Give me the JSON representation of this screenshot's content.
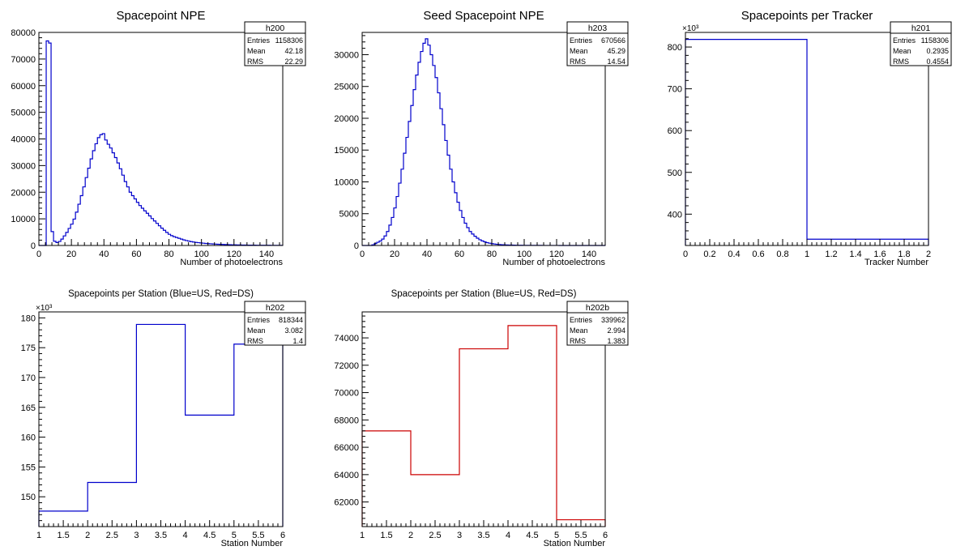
{
  "chart_data": [
    {
      "id": "h200",
      "type": "histogram",
      "title": "Spacepoint NPE",
      "xlabel": "Number of photoelectrons",
      "ylabel": "",
      "xlim": [
        0,
        150
      ],
      "ylim": [
        0,
        80000
      ],
      "xticks": [
        0,
        20,
        40,
        60,
        80,
        100,
        120,
        140
      ],
      "xtick_labels": [
        "0",
        "20",
        "40",
        "60",
        "80",
        "100",
        "120",
        "140"
      ],
      "yticks": [
        0,
        10000,
        20000,
        30000,
        40000,
        50000,
        60000,
        70000,
        80000
      ],
      "ytick_labels": [
        "0",
        "10000",
        "20000",
        "30000",
        "40000",
        "50000",
        "60000",
        "70000",
        "80000"
      ],
      "y_exponent": "",
      "color": "#0000cc",
      "bin_edges_start": 0,
      "bin_width": 1.5,
      "values": [
        0,
        0,
        0,
        76800,
        76000,
        5200,
        1600,
        1100,
        1500,
        2400,
        3600,
        4900,
        6400,
        8000,
        9900,
        12500,
        15500,
        18700,
        22000,
        25500,
        29000,
        32500,
        35600,
        38200,
        40500,
        41600,
        42000,
        39600,
        38000,
        36600,
        34800,
        33000,
        31000,
        28800,
        26400,
        24000,
        22000,
        20000,
        18700,
        17500,
        16200,
        15000,
        14000,
        13000,
        12100,
        11100,
        10100,
        9200,
        8300,
        7400,
        6500,
        5700,
        4900,
        4200,
        3700,
        3300,
        3000,
        2700,
        2400,
        2100,
        1850,
        1650,
        1450,
        1300,
        1150,
        1050,
        950,
        850,
        750,
        680,
        620,
        560,
        510,
        460,
        420,
        380,
        340,
        310,
        280,
        250,
        230,
        210,
        190,
        170,
        155,
        140,
        130,
        120,
        110,
        100,
        90,
        85,
        80,
        75,
        70,
        65,
        60,
        55,
        50,
        45
      ],
      "stats": {
        "name": "h200",
        "rows": [
          [
            "Entries",
            "1158306"
          ],
          [
            "Mean",
            "42.18"
          ],
          [
            "RMS",
            "22.29"
          ]
        ]
      }
    },
    {
      "id": "h203",
      "type": "histogram",
      "title": "Seed Spacepoint NPE",
      "xlabel": "Number of photoelectrons",
      "ylabel": "",
      "xlim": [
        0,
        150
      ],
      "ylim": [
        0,
        33500
      ],
      "xticks": [
        0,
        20,
        40,
        60,
        80,
        100,
        120,
        140
      ],
      "xtick_labels": [
        "0",
        "20",
        "40",
        "60",
        "80",
        "100",
        "120",
        "140"
      ],
      "yticks": [
        0,
        5000,
        10000,
        15000,
        20000,
        25000,
        30000
      ],
      "ytick_labels": [
        "0",
        "5000",
        "10000",
        "15000",
        "20000",
        "25000",
        "30000"
      ],
      "y_exponent": "",
      "color": "#0000cc",
      "bin_edges_start": 0,
      "bin_width": 1.5,
      "values": [
        0,
        0,
        0,
        0,
        100,
        300,
        500,
        700,
        1000,
        1500,
        2200,
        3200,
        4400,
        5900,
        7700,
        9800,
        12000,
        14500,
        17000,
        19500,
        22000,
        24500,
        26800,
        28800,
        30500,
        31800,
        32500,
        31500,
        30000,
        28300,
        26400,
        24000,
        21500,
        19000,
        16500,
        14200,
        12000,
        10000,
        8300,
        6800,
        5500,
        4400,
        3500,
        2800,
        2200,
        1800,
        1450,
        1150,
        900,
        720,
        570,
        450,
        360,
        290,
        230,
        185,
        150,
        120,
        100,
        85,
        70,
        60,
        50,
        40,
        35,
        30,
        25,
        22,
        20,
        18,
        16,
        14,
        12,
        11,
        10,
        9,
        8,
        7,
        6,
        5,
        5,
        4,
        4,
        3,
        3,
        3,
        2,
        2,
        2,
        2,
        1,
        1,
        1,
        1,
        1,
        1,
        1,
        1,
        1,
        1
      ],
      "stats": {
        "name": "h203",
        "rows": [
          [
            "Entries",
            "670566"
          ],
          [
            "Mean",
            "45.29"
          ],
          [
            "RMS",
            "14.54"
          ]
        ]
      }
    },
    {
      "id": "h201",
      "type": "histogram",
      "title": "Spacepoints per Tracker",
      "xlabel": "Tracker Number",
      "ylabel": "",
      "xlim": [
        0,
        2
      ],
      "ylim": [
        325,
        835
      ],
      "xticks": [
        0,
        0.2,
        0.4,
        0.6,
        0.8,
        1,
        1.2,
        1.4,
        1.6,
        1.8,
        2
      ],
      "xtick_labels": [
        "0",
        "0.2",
        "0.4",
        "0.6",
        "0.8",
        "1",
        "1.2",
        "1.4",
        "1.6",
        "1.8",
        "2"
      ],
      "yticks": [
        400,
        500,
        600,
        700,
        800
      ],
      "ytick_labels": [
        "400",
        "500",
        "600",
        "700",
        "800"
      ],
      "y_exponent": "×10³",
      "color": "#0000cc",
      "bin_edges_start": 0,
      "bin_width": 1,
      "values": [
        818.344,
        339.962
      ],
      "stats": {
        "name": "h201",
        "rows": [
          [
            "Entries",
            "1158306"
          ],
          [
            "Mean",
            "0.2935"
          ],
          [
            "RMS",
            "0.4554"
          ]
        ]
      }
    },
    {
      "id": "h202",
      "type": "histogram",
      "title": "Spacepoints per Station (Blue=US, Red=DS)",
      "xlabel": "Station Number",
      "ylabel": "",
      "xlim": [
        1,
        6
      ],
      "ylim": [
        145,
        181
      ],
      "xticks": [
        1,
        1.5,
        2,
        2.5,
        3,
        3.5,
        4,
        4.5,
        5,
        5.5,
        6
      ],
      "xtick_labels": [
        "1",
        "1.5",
        "2",
        "2.5",
        "3",
        "3.5",
        "4",
        "4.5",
        "5",
        "5.5",
        "6"
      ],
      "yticks": [
        150,
        155,
        160,
        165,
        170,
        175,
        180
      ],
      "ytick_labels": [
        "150",
        "155",
        "160",
        "165",
        "170",
        "175",
        "180"
      ],
      "y_exponent": "×10³",
      "color": "#0000cc",
      "bin_edges_start": 1,
      "bin_width": 1,
      "values": [
        147.6,
        152.4,
        178.9,
        163.7,
        175.6
      ],
      "stats": {
        "name": "h202",
        "rows": [
          [
            "Entries",
            "818344"
          ],
          [
            "Mean",
            "3.082"
          ],
          [
            "RMS",
            "1.4"
          ]
        ]
      }
    },
    {
      "id": "h202b",
      "type": "histogram",
      "title": "Spacepoints per Station (Blue=US, Red=DS)",
      "xlabel": "Station Number",
      "ylabel": "",
      "xlim": [
        1,
        6
      ],
      "ylim": [
        60200,
        75900
      ],
      "xticks": [
        1,
        1.5,
        2,
        2.5,
        3,
        3.5,
        4,
        4.5,
        5,
        5.5,
        6
      ],
      "xtick_labels": [
        "1",
        "1.5",
        "2",
        "2.5",
        "3",
        "3.5",
        "4",
        "4.5",
        "5",
        "5.5",
        "6"
      ],
      "yticks": [
        62000,
        64000,
        66000,
        68000,
        70000,
        72000,
        74000
      ],
      "ytick_labels": [
        "62000",
        "64000",
        "66000",
        "68000",
        "70000",
        "72000",
        "74000"
      ],
      "y_exponent": "",
      "color": "#cc0000",
      "bin_edges_start": 1,
      "bin_width": 1,
      "values": [
        67200,
        64000,
        73200,
        74900,
        60700
      ],
      "stats": {
        "name": "h202b",
        "rows": [
          [
            "Entries",
            "339962"
          ],
          [
            "Mean",
            "2.994"
          ],
          [
            "RMS",
            "1.383"
          ]
        ]
      }
    }
  ]
}
